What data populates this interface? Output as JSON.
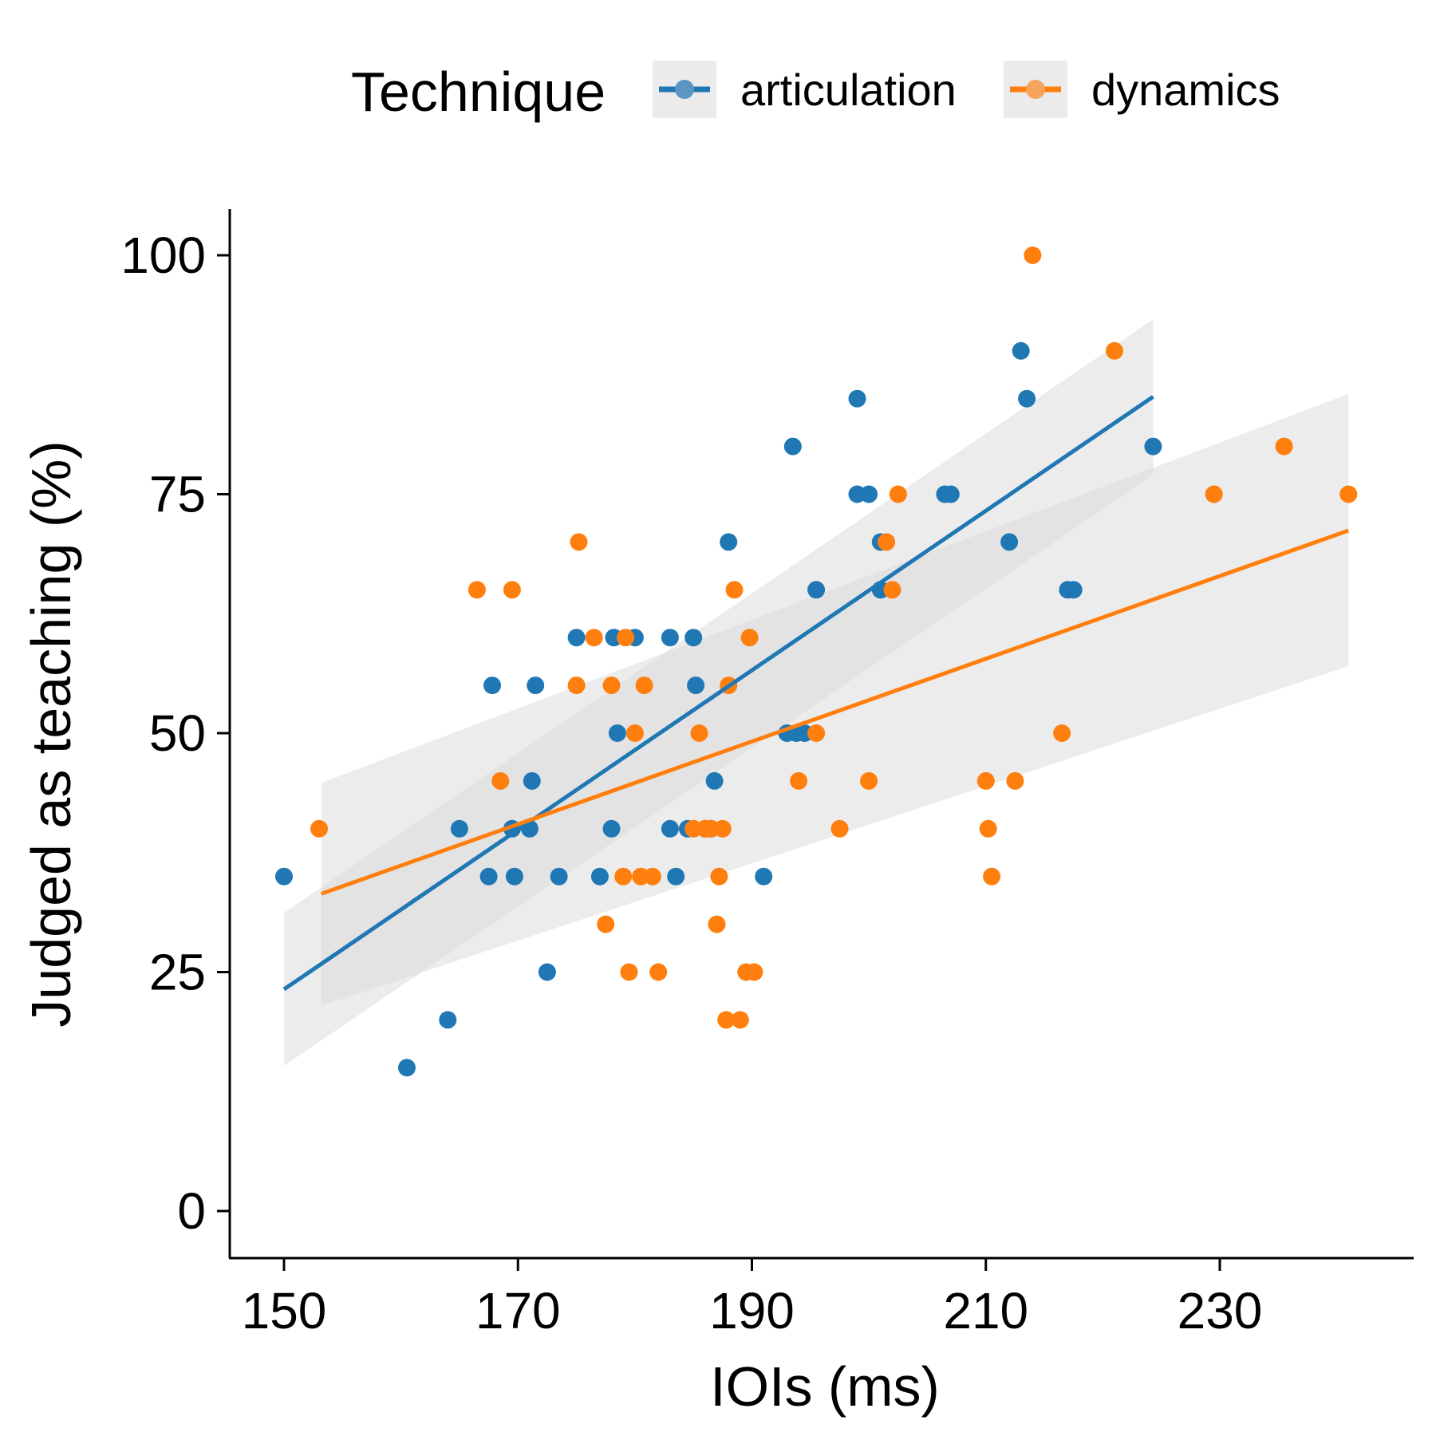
{
  "chart_data": {
    "type": "scatter",
    "xlabel": "IOIs (ms)",
    "ylabel": "Judged as teaching (%)",
    "xlim": [
      145,
      241
    ],
    "ylim": [
      -5,
      105
    ],
    "x_ticks": [
      150,
      170,
      190,
      210,
      230
    ],
    "y_ticks": [
      0,
      25,
      50,
      75,
      100
    ],
    "grid": false,
    "legend": {
      "title": "Technique",
      "placement": "top",
      "entries": [
        "articulation",
        "dynamics"
      ]
    },
    "colors": {
      "articulation": "#1f77b4",
      "dynamics": "#ff7f0e",
      "ribbon": "#d9d9d9",
      "axis": "#000000"
    },
    "series": [
      {
        "name": "articulation",
        "color": "#1f77b4",
        "points": [
          [
            150,
            35
          ],
          [
            160.5,
            15
          ],
          [
            164,
            20
          ],
          [
            165,
            40
          ],
          [
            167.5,
            35
          ],
          [
            167.8,
            55
          ],
          [
            169.5,
            40
          ],
          [
            169.7,
            35
          ],
          [
            171,
            40
          ],
          [
            171.2,
            45
          ],
          [
            171.5,
            55
          ],
          [
            172.5,
            25
          ],
          [
            173.5,
            35
          ],
          [
            175,
            60
          ],
          [
            177,
            35
          ],
          [
            178,
            40
          ],
          [
            178.2,
            60
          ],
          [
            178.5,
            50
          ],
          [
            180,
            60
          ],
          [
            183,
            40
          ],
          [
            183,
            60
          ],
          [
            183.5,
            35
          ],
          [
            184.5,
            40
          ],
          [
            185,
            60
          ],
          [
            185.2,
            55
          ],
          [
            186,
            40
          ],
          [
            186.5,
            40
          ],
          [
            186.8,
            45
          ],
          [
            188,
            70
          ],
          [
            191,
            35
          ],
          [
            193,
            50
          ],
          [
            193.5,
            80
          ],
          [
            193.8,
            50
          ],
          [
            194.5,
            50
          ],
          [
            195.5,
            65
          ],
          [
            199,
            75
          ],
          [
            199,
            85
          ],
          [
            200,
            75
          ],
          [
            201,
            65
          ],
          [
            201,
            70
          ],
          [
            206.5,
            75
          ],
          [
            207,
            75
          ],
          [
            212,
            70
          ],
          [
            213,
            90
          ],
          [
            213.5,
            85
          ],
          [
            217,
            65
          ],
          [
            217.5,
            65
          ],
          [
            224.3,
            80
          ]
        ],
        "trend": {
          "x": [
            150,
            224.3
          ],
          "y": [
            23.2,
            85.2
          ]
        },
        "ci_lower_y": [
          15.2,
          77.0
        ],
        "ci_upper_y": [
          31.2,
          93.3
        ]
      },
      {
        "name": "dynamics",
        "color": "#ff7f0e",
        "points": [
          [
            153,
            40
          ],
          [
            166.5,
            65
          ],
          [
            168.5,
            45
          ],
          [
            169.5,
            65
          ],
          [
            175,
            55
          ],
          [
            175.2,
            70
          ],
          [
            176.5,
            60
          ],
          [
            177.5,
            30
          ],
          [
            178,
            55
          ],
          [
            179,
            35
          ],
          [
            179.2,
            60
          ],
          [
            179.5,
            25
          ],
          [
            180,
            50
          ],
          [
            180.5,
            35
          ],
          [
            180.8,
            55
          ],
          [
            181.5,
            35
          ],
          [
            182,
            25
          ],
          [
            185,
            40
          ],
          [
            185.5,
            50
          ],
          [
            186,
            40
          ],
          [
            186.5,
            40
          ],
          [
            187,
            30
          ],
          [
            187.2,
            35
          ],
          [
            187.5,
            40
          ],
          [
            187.8,
            20
          ],
          [
            188,
            55
          ],
          [
            188.5,
            65
          ],
          [
            189,
            20
          ],
          [
            189.5,
            25
          ],
          [
            189.8,
            60
          ],
          [
            190.2,
            25
          ],
          [
            194,
            45
          ],
          [
            195.5,
            50
          ],
          [
            197.5,
            40
          ],
          [
            200,
            45
          ],
          [
            201.5,
            70
          ],
          [
            202,
            65
          ],
          [
            202.5,
            75
          ],
          [
            210,
            45
          ],
          [
            210.2,
            40
          ],
          [
            210.5,
            35
          ],
          [
            212.5,
            45
          ],
          [
            214,
            100
          ],
          [
            216.5,
            50
          ],
          [
            221,
            90
          ],
          [
            229.5,
            75
          ],
          [
            235.5,
            80
          ],
          [
            241,
            75
          ]
        ],
        "trend": {
          "x": [
            153.2,
            241
          ],
          "y": [
            33.2,
            71.2
          ]
        },
        "ci_lower_y": [
          21.5,
          57.0
        ],
        "ci_upper_y": [
          44.8,
          85.5
        ]
      }
    ]
  }
}
